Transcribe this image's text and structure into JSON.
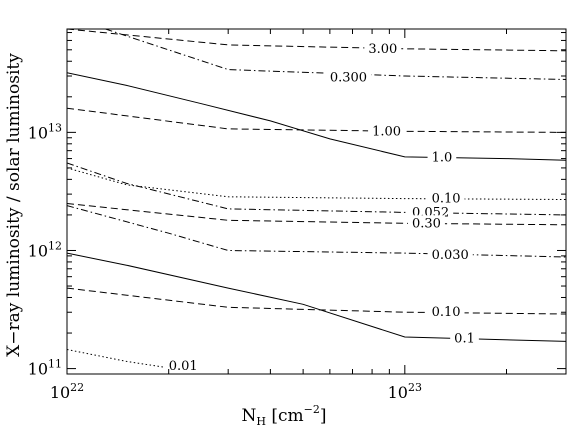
{
  "chart_data": {
    "type": "line",
    "xlabel_main": "N",
    "xlabel_sub": "H",
    "xlabel_unit_open": " [cm",
    "xlabel_unit_exp": "−2",
    "xlabel_unit_close": "]",
    "ylabel": "X−ray luminosity / solar luminosity",
    "x_scale": "log",
    "y_scale": "log",
    "xlim": [
      1e+22,
      3e+23
    ],
    "ylim": [
      90000000000.0,
      75000000000000.0
    ],
    "x_ticks": [
      {
        "base": "10",
        "exp": "22",
        "value": 1e+22
      },
      {
        "base": "10",
        "exp": "23",
        "value": 1e+23
      }
    ],
    "y_ticks": [
      {
        "base": "10",
        "exp": "11",
        "value": 100000000000.0
      },
      {
        "base": "10",
        "exp": "12",
        "value": 1000000000000.0
      },
      {
        "base": "10",
        "exp": "13",
        "value": 10000000000000.0
      }
    ],
    "grid": false,
    "legend": "none",
    "series": [
      {
        "label": "3.00",
        "style": "dashed",
        "x": [
          1e+22,
          3e+22,
          1e+23,
          3e+23
        ],
        "y": [
          75000000000000.0,
          55000000000000.0,
          51000000000000.0,
          49000000000000.0
        ],
        "label_x": 7.8e+22,
        "label_y": 51000000000000.0
      },
      {
        "label": "0.300",
        "style": "dashdot",
        "x": [
          1.3e+22,
          3e+22,
          1e+23,
          3e+23
        ],
        "y": [
          75000000000000.0,
          34000000000000.0,
          30000000000000.0,
          28000000000000.0
        ],
        "label_x": 6e+22,
        "label_y": 29000000000000.0
      },
      {
        "label": "1.0",
        "style": "solid",
        "x": [
          1e+22,
          1.5e+22,
          2.5e+22,
          4e+22,
          6e+22,
          1e+23,
          2e+23,
          3e+23
        ],
        "y": [
          32000000000000.0,
          25000000000000.0,
          17500000000000.0,
          12500000000000.0,
          8800000000000.0,
          6200000000000.0,
          6000000000000.0,
          5800000000000.0
        ],
        "label_x": 1.2e+23,
        "label_y": 6100000000000.0
      },
      {
        "label": "1.00",
        "style": "dashed",
        "x": [
          1e+22,
          3e+22,
          1e+23,
          3e+23
        ],
        "y": [
          16000000000000.0,
          10700000000000.0,
          10200000000000.0,
          10000000000000.0
        ],
        "label_x": 8e+22,
        "label_y": 10200000000000.0
      },
      {
        "label": "0.10",
        "style": "dotted",
        "x": [
          1e+22,
          1.5e+22,
          3e+22,
          1e+23,
          3e+23
        ],
        "y": [
          5000000000000.0,
          3600000000000.0,
          2850000000000.0,
          2750000000000.0,
          2700000000000.0
        ],
        "label_x": 1.2e+23,
        "label_y": 2750000000000.0
      },
      {
        "label": "0.052",
        "style": "dashdot",
        "x": [
          1e+22,
          1.5e+22,
          3e+22,
          1e+23,
          3e+23
        ],
        "y": [
          5500000000000.0,
          3700000000000.0,
          2250000000000.0,
          2100000000000.0,
          2000000000000.0
        ],
        "label_x": 1.05e+23,
        "label_y": 2100000000000.0
      },
      {
        "label": "0.30",
        "style": "dashed",
        "x": [
          1e+22,
          3e+22,
          1e+23,
          3e+23
        ],
        "y": [
          2500000000000.0,
          1800000000000.0,
          1700000000000.0,
          1650000000000.0
        ],
        "label_x": 1.05e+23,
        "label_y": 1700000000000.0
      },
      {
        "label": "0.030",
        "style": "dashdot",
        "x": [
          1e+22,
          2e+22,
          3e+22,
          1e+23,
          3e+23
        ],
        "y": [
          2400000000000.0,
          1400000000000.0,
          1000000000000.0,
          950000000000.0,
          880000000000.0
        ],
        "label_x": 1.2e+23,
        "label_y": 920000000000.0
      },
      {
        "label": "0.1",
        "style": "solid",
        "x": [
          1e+22,
          1.5e+22,
          3e+22,
          5e+22,
          1e+23,
          3e+23
        ],
        "y": [
          950000000000.0,
          750000000000.0,
          480000000000.0,
          350000000000.0,
          185000000000.0,
          170000000000.0
        ],
        "label_x": 1.4e+23,
        "label_y": 180000000000.0
      },
      {
        "label": "0.10",
        "style": "dashed",
        "x": [
          1e+22,
          3e+22,
          1e+23,
          3e+23
        ],
        "y": [
          480000000000.0,
          330000000000.0,
          300000000000.0,
          290000000000.0
        ],
        "label_x": 1.2e+23,
        "label_y": 300000000000.0
      },
      {
        "label": "0.01",
        "style": "dotted",
        "x": [
          1e+22,
          1.5e+22,
          2.5e+22
        ],
        "y": [
          145000000000.0,
          115000000000.0,
          92000000000.0
        ],
        "label_x": 2e+22,
        "label_y": 105000000000.0
      }
    ]
  }
}
